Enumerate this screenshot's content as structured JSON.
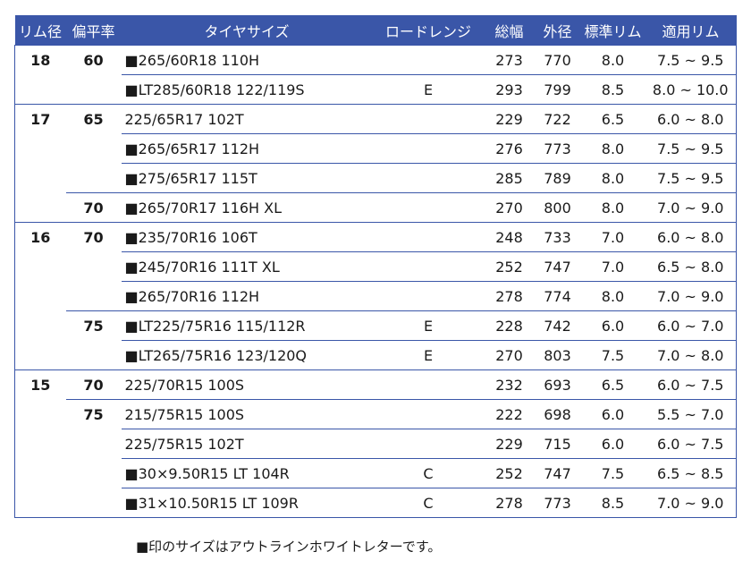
{
  "table": {
    "headers": [
      "リム径",
      "偏平率",
      "タイヤサイズ",
      "ロードレンジ",
      "総幅",
      "外径",
      "標準リム",
      "適用リム"
    ],
    "rows": [
      {
        "rim": "18",
        "aspect": "60",
        "size": "■265/60R18 110H",
        "load": "",
        "width": "273",
        "od": "770",
        "std": "8.0",
        "app": "7.5 ~ 9.5"
      },
      {
        "rim": "",
        "aspect": "",
        "size": "■LT285/60R18 122/119S",
        "load": "E",
        "width": "293",
        "od": "799",
        "std": "8.5",
        "app": "8.0 ~ 10.0"
      },
      {
        "rim": "17",
        "aspect": "65",
        "size": "225/65R17 102T",
        "load": "",
        "width": "229",
        "od": "722",
        "std": "6.5",
        "app": "6.0 ~ 8.0"
      },
      {
        "rim": "",
        "aspect": "",
        "size": "■265/65R17 112H",
        "load": "",
        "width": "276",
        "od": "773",
        "std": "8.0",
        "app": "7.5 ~ 9.5"
      },
      {
        "rim": "",
        "aspect": "",
        "size": "■275/65R17 115T",
        "load": "",
        "width": "285",
        "od": "789",
        "std": "8.0",
        "app": "7.5 ~ 9.5"
      },
      {
        "rim": "",
        "aspect": "70",
        "size": "■265/70R17 116H XL",
        "load": "",
        "width": "270",
        "od": "800",
        "std": "8.0",
        "app": "7.0 ~ 9.0"
      },
      {
        "rim": "16",
        "aspect": "70",
        "size": "■235/70R16 106T",
        "load": "",
        "width": "248",
        "od": "733",
        "std": "7.0",
        "app": "6.0 ~ 8.0"
      },
      {
        "rim": "",
        "aspect": "",
        "size": "■245/70R16 111T XL",
        "load": "",
        "width": "252",
        "od": "747",
        "std": "7.0",
        "app": "6.5 ~ 8.0"
      },
      {
        "rim": "",
        "aspect": "",
        "size": "■265/70R16 112H",
        "load": "",
        "width": "278",
        "od": "774",
        "std": "8.0",
        "app": "7.0 ~ 9.0"
      },
      {
        "rim": "",
        "aspect": "75",
        "size": "■LT225/75R16 115/112R",
        "load": "E",
        "width": "228",
        "od": "742",
        "std": "6.0",
        "app": "6.0 ~ 7.0"
      },
      {
        "rim": "",
        "aspect": "",
        "size": "■LT265/75R16 123/120Q",
        "load": "E",
        "width": "270",
        "od": "803",
        "std": "7.5",
        "app": "7.0 ~ 8.0"
      },
      {
        "rim": "15",
        "aspect": "70",
        "size": "225/70R15 100S",
        "load": "",
        "width": "232",
        "od": "693",
        "std": "6.5",
        "app": "6.0 ~ 7.5"
      },
      {
        "rim": "",
        "aspect": "75",
        "size": "215/75R15 100S",
        "load": "",
        "width": "222",
        "od": "698",
        "std": "6.0",
        "app": "5.5 ~ 7.0"
      },
      {
        "rim": "",
        "aspect": "",
        "size": "225/75R15 102T",
        "load": "",
        "width": "229",
        "od": "715",
        "std": "6.0",
        "app": "6.0 ~ 7.5"
      },
      {
        "rim": "",
        "aspect": "",
        "size": "■30×9.50R15 LT 104R",
        "load": "C",
        "width": "252",
        "od": "747",
        "std": "7.5",
        "app": "6.5 ~ 8.5"
      },
      {
        "rim": "",
        "aspect": "",
        "size": "■31×10.50R15 LT 109R",
        "load": "C",
        "width": "278",
        "od": "773",
        "std": "8.5",
        "app": "7.0 ~ 9.0"
      }
    ]
  },
  "footnote": "■印のサイズはアウトラインホワイトレターです。",
  "colors": {
    "header_bg": "#3a56a8",
    "rule": "#3a56a8",
    "header_text": "#ffffff"
  }
}
